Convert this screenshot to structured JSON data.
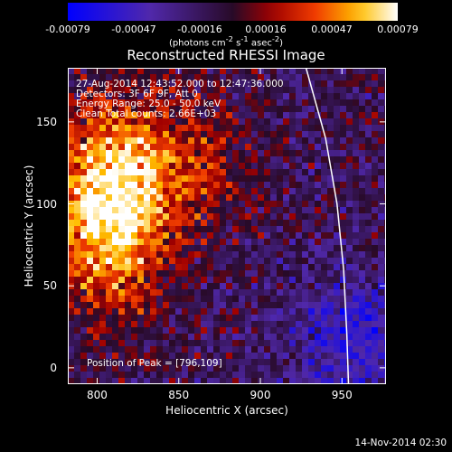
{
  "colorbar": {
    "ticks": [
      "-0.00079",
      "-0.00047",
      "-0.00016",
      "0.00016",
      "0.00047",
      "0.00079"
    ],
    "units_html": "(photons cm<sup>-2</sup> s<sup>-1</sup> asec<sup>-2</sup>)"
  },
  "chart_data": {
    "type": "heatmap",
    "title": "Reconstructed RHESSI Image",
    "xlabel": "Heliocentric X (arcsec)",
    "ylabel": "Heliocentric Y (arcsec)",
    "xlim": [
      782,
      977
    ],
    "ylim": [
      -10,
      183
    ],
    "xticks": [
      800,
      850,
      900,
      950
    ],
    "yticks": [
      0,
      50,
      100,
      150
    ],
    "colorbar_range": [
      -0.00079,
      0.00079
    ],
    "colormap": "blue-purple-red-yellow-white",
    "annotations": [
      "27-Aug-2014 12:43:52.000 to 12:47:36.000",
      "Detectors: 3F 6F 9F, Att 0",
      "Energy Range: 25.0 - 50.0 keV",
      "Clean    Total counts: 2.66E+03"
    ],
    "peak_label": "Position of Peak = [796,109]",
    "peak_position": [
      796,
      109
    ],
    "limb_curve": [
      [
        928,
        183
      ],
      [
        940,
        140
      ],
      [
        947,
        100
      ],
      [
        951,
        60
      ],
      [
        953,
        20
      ],
      [
        954,
        -10
      ]
    ]
  },
  "footer": {
    "timestamp": "14-Nov-2014 02:30"
  }
}
